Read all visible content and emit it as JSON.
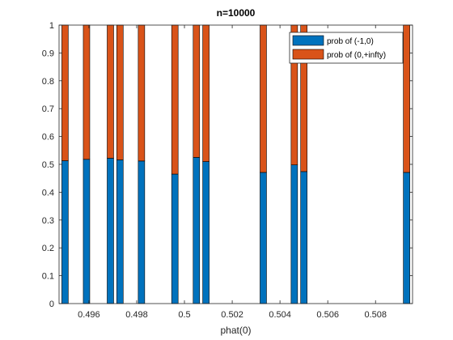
{
  "chart_data": {
    "type": "bar",
    "stacked": true,
    "title": "n=10000",
    "xlabel": "phat(0)",
    "ylabel": "",
    "xlim": [
      0.49475,
      0.50955
    ],
    "ylim": [
      0,
      1
    ],
    "xticks": [
      0.496,
      0.498,
      0.5,
      0.502,
      0.504,
      0.506,
      0.508
    ],
    "xtick_labels": [
      "0.496",
      "0.498",
      "0.5",
      "0.502",
      "0.504",
      "0.506",
      "0.508"
    ],
    "yticks": [
      0,
      0.1,
      0.2,
      0.3,
      0.4,
      0.5,
      0.6,
      0.7,
      0.8,
      0.9,
      1
    ],
    "ytick_labels": [
      "0",
      "0.1",
      "0.2",
      "0.3",
      "0.4",
      "0.5",
      "0.6",
      "0.7",
      "0.8",
      "0.9",
      "1"
    ],
    "grid": false,
    "legend_position": "top-right",
    "x": [
      0.495,
      0.4959,
      0.4969,
      0.4973,
      0.4982,
      0.4996,
      0.5005,
      0.5009,
      0.5033,
      0.5046,
      0.505,
      0.5093
    ],
    "series": [
      {
        "name": "prob of (-1,0)",
        "color": "#0072BD",
        "values": [
          0.513,
          0.518,
          0.522,
          0.516,
          0.512,
          0.465,
          0.525,
          0.51,
          0.471,
          0.498,
          0.474,
          0.471
        ]
      },
      {
        "name": "prob of (0,+infty)",
        "color": "#D95319",
        "values": [
          0.487,
          0.482,
          0.478,
          0.484,
          0.488,
          0.535,
          0.475,
          0.49,
          0.529,
          0.502,
          0.526,
          0.529
        ]
      }
    ]
  }
}
